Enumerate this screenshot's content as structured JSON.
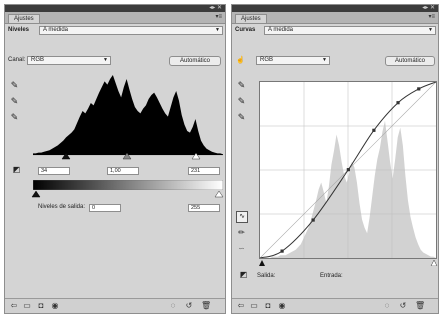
{
  "levels_panel": {
    "panel_tab": "Ajustes",
    "header_label": "Niveles",
    "preset": "A medida",
    "channel_label": "Canal:",
    "channel_value": "RGB",
    "auto_button": "Automático",
    "input_black": "34",
    "input_gamma": "1,00",
    "input_white": "231",
    "output_label": "Niveles de salida:",
    "output_black": "0",
    "output_white": "255",
    "histogram": [
      2,
      2,
      3,
      3,
      4,
      5,
      6,
      8,
      10,
      12,
      15,
      18,
      22,
      25,
      28,
      32,
      40,
      48,
      55,
      52,
      58,
      65,
      62,
      70,
      78,
      85,
      92,
      88,
      95,
      100,
      90,
      80,
      72,
      85,
      95,
      82,
      70,
      60,
      55,
      52,
      58,
      62,
      70,
      75,
      78,
      72,
      65,
      58,
      52,
      48,
      60,
      72,
      80,
      68,
      50,
      38,
      30,
      28,
      35,
      45,
      30,
      18,
      12,
      8,
      6,
      4,
      3,
      2,
      2,
      1
    ]
  },
  "curves_panel": {
    "panel_tab": "Ajustes",
    "header_label": "Curvas",
    "preset": "A medida",
    "channel_value": "RGB",
    "auto_button": "Automático",
    "output_label": "Salida:",
    "input_label": "Entrada:",
    "curve_points": [
      [
        0,
        0
      ],
      [
        32,
        10
      ],
      [
        77,
        55
      ],
      [
        128,
        128
      ],
      [
        165,
        185
      ],
      [
        200,
        225
      ],
      [
        230,
        245
      ],
      [
        255,
        255
      ]
    ],
    "histogram": [
      0,
      0,
      0,
      0,
      0,
      1,
      1,
      1,
      2,
      2,
      2,
      3,
      4,
      5,
      6,
      8,
      10,
      14,
      18,
      22,
      28,
      35,
      42,
      50,
      55,
      48,
      40,
      52,
      68,
      78,
      90,
      82,
      70,
      60,
      55,
      62,
      70,
      66,
      55,
      40,
      28,
      22,
      18,
      30,
      45,
      60,
      72,
      80,
      92,
      100,
      85,
      70,
      58,
      72,
      88,
      95,
      82,
      60,
      42,
      30,
      22,
      15,
      10,
      6,
      4,
      3,
      2,
      1,
      1,
      0
    ]
  }
}
